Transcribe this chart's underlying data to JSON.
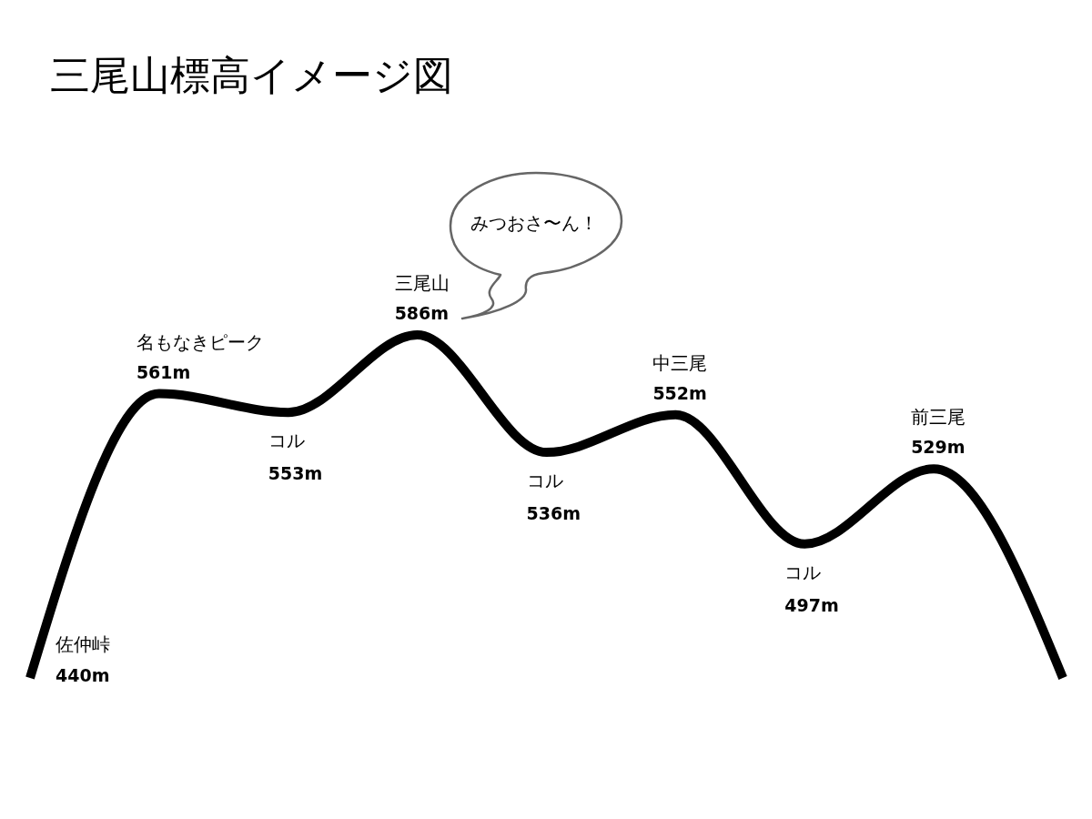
{
  "chart_data": {
    "type": "line",
    "title": "三尾山標高イメージ図",
    "categories": [
      "佐仲峠",
      "名もなきピーク",
      "コル",
      "三尾山",
      "コル",
      "中三尾",
      "コル",
      "前三尾",
      null
    ],
    "series": [
      {
        "color": "#000000",
        "values": [
          440,
          561,
          553,
          586,
          536,
          552,
          497,
          529,
          440
        ],
        "value_labels": [
          "440m",
          "561m",
          "553m",
          "586m",
          "536m",
          "552m",
          "497m",
          "529m",
          null
        ]
      }
    ],
    "annotations": [
      "みつおさ〜ん！"
    ]
  }
}
